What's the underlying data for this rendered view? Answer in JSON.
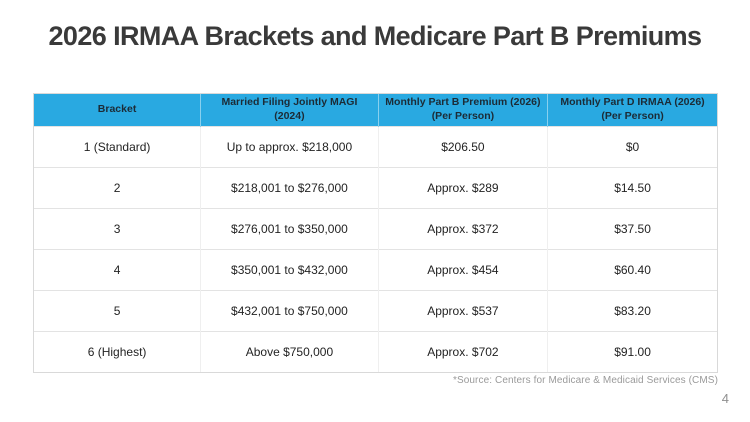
{
  "slide": {
    "title": "2026 IRMAA Brackets and Medicare Part B Premiums",
    "source_note": "*Source: Centers for Medicare & Medicaid Services (CMS)",
    "page_number": "4"
  },
  "colors": {
    "header_bg": "#29A9E1",
    "header_text": "#1C2B36",
    "body_text": "#232323",
    "title_text": "#3A3A3A",
    "muted_text": "#9A9A9A",
    "grid_line": "#E3E3E3"
  },
  "table": {
    "headers": [
      {
        "line1": "Bracket",
        "line2": ""
      },
      {
        "line1": "Married Filing Jointly MAGI",
        "line2": "(2024)"
      },
      {
        "line1": "Monthly Part B Premium (2026)",
        "line2": "(Per Person)"
      },
      {
        "line1": "Monthly Part D IRMAA (2026)",
        "line2": "(Per Person)"
      }
    ],
    "rows": [
      {
        "cells": [
          "1 (Standard)",
          "Up to approx. $218,000",
          "$206.50",
          "$0"
        ]
      },
      {
        "cells": [
          "2",
          "$218,001 to $276,000",
          "Approx. $289",
          "$14.50"
        ]
      },
      {
        "cells": [
          "3",
          "$276,001 to $350,000",
          "Approx. $372",
          "$37.50"
        ]
      },
      {
        "cells": [
          "4",
          "$350,001 to $432,000",
          "Approx. $454",
          "$60.40"
        ]
      },
      {
        "cells": [
          "5",
          "$432,001 to $750,000",
          "Approx. $537",
          "$83.20"
        ]
      },
      {
        "cells": [
          "6 (Highest)",
          "Above $750,000",
          "Approx. $702",
          "$91.00"
        ]
      }
    ]
  },
  "chart_data": {
    "type": "table",
    "title": "2026 IRMAA Brackets and Medicare Part B Premiums",
    "columns": [
      "Bracket",
      "Married Filing Jointly MAGI (2024)",
      "Monthly Part B Premium (2026) (Per Person)",
      "Monthly Part D IRMAA (2026) (Per Person)"
    ],
    "rows": [
      [
        "1 (Standard)",
        "Up to approx. $218,000",
        "$206.50",
        "$0"
      ],
      [
        "2",
        "$218,001 to $276,000",
        "Approx. $289",
        "$14.50"
      ],
      [
        "3",
        "$276,001 to $350,000",
        "Approx. $372",
        "$37.50"
      ],
      [
        "4",
        "$350,001 to $432,000",
        "Approx. $454",
        "$60.40"
      ],
      [
        "5",
        "$432,001 to $750,000",
        "Approx. $537",
        "$83.20"
      ],
      [
        "6 (Highest)",
        "Above $750,000",
        "Approx. $702",
        "$91.00"
      ]
    ],
    "source": "*Source: Centers for Medicare & Medicaid Services (CMS)"
  }
}
